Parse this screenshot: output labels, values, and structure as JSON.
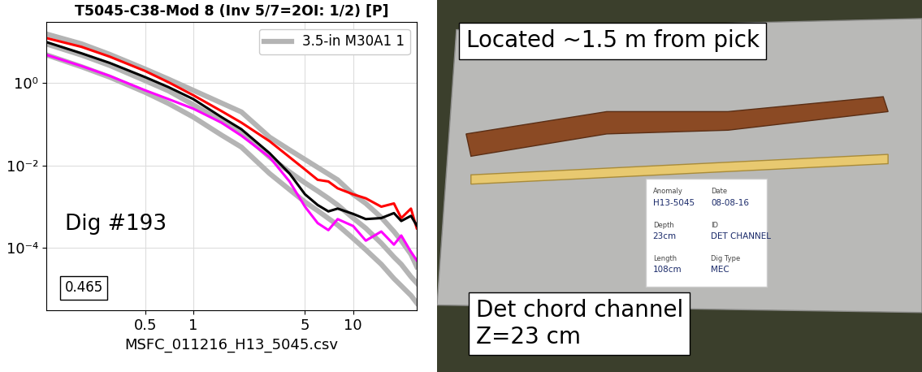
{
  "chart_data": {
    "type": "line",
    "title": "T5045-C38-Mod 8 (Inv 5/7=2OI: 1/2) [P]",
    "x_label": "MSFC_011216_H13_5045.csv",
    "annotations": [
      "Dig #193"
    ],
    "boxed_annotation": "0.465",
    "log": true,
    "grid": true,
    "legend": "upper right",
    "xlim": [
      0.12,
      25
    ],
    "ylim": [
      3e-06,
      30
    ],
    "xticks": [
      0.5,
      1,
      5,
      10
    ],
    "yticks": [
      {
        "value": 0.0001,
        "label": "10⁻⁴"
      },
      {
        "value": 0.01,
        "label": "10⁻²"
      },
      {
        "value": 1,
        "label": "10⁰"
      }
    ],
    "x": [
      0.12,
      0.2,
      0.3,
      0.5,
      0.7,
      1,
      1.5,
      2,
      3,
      4,
      5,
      6,
      7,
      8,
      10,
      12,
      15,
      18,
      20,
      23,
      25
    ],
    "series": [
      {
        "name": "3.5-in M30A1 1",
        "color": "#b4b4b4",
        "line_style": "solid",
        "values": [
          15.7,
          9.0,
          5.0,
          2.2,
          1.25,
          0.67,
          0.33,
          0.2,
          0.049,
          0.024,
          0.014,
          0.009,
          0.0062,
          0.0045,
          0.002,
          0.0012,
          0.00055,
          0.00025,
          0.00015,
          7e-05,
          3.5e-05
        ]
      },
      {
        "color": "#b4b4b4",
        "line_style": "solid",
        "values": [
          9.0,
          4.8,
          2.7,
          1.15,
          0.65,
          0.3,
          0.12,
          0.065,
          0.016,
          0.007,
          0.0038,
          0.0024,
          0.0016,
          0.0011,
          0.00053,
          0.0003,
          0.00013,
          6e-05,
          4e-05,
          2e-05,
          1.4e-05
        ]
      },
      {
        "color": "#b4b4b4",
        "line_style": "solid",
        "values": [
          4.9,
          2.5,
          1.4,
          0.6,
          0.32,
          0.15,
          0.055,
          0.028,
          0.0064,
          0.0026,
          0.0013,
          0.0008,
          0.00052,
          0.00036,
          0.00017,
          9e-05,
          4e-05,
          1.8e-05,
          1.2e-05,
          7e-06,
          4.6e-06
        ]
      },
      {
        "color": "#ff0000",
        "line_style": "solid",
        "values": [
          12.5,
          7.6,
          4.4,
          1.97,
          1.05,
          0.51,
          0.21,
          0.11,
          0.039,
          0.016,
          0.008,
          0.0045,
          0.0041,
          0.0028,
          0.002,
          0.0016,
          0.001,
          0.0012,
          0.00053,
          0.0009,
          0.0003
        ]
      },
      {
        "color": "#000000",
        "line_style": "solid",
        "values": [
          10.0,
          5.3,
          3.1,
          1.4,
          0.8,
          0.41,
          0.15,
          0.076,
          0.02,
          0.0064,
          0.002,
          0.0011,
          0.00077,
          0.0009,
          0.00067,
          0.0005,
          0.00053,
          0.0007,
          0.00045,
          0.0006,
          0.00035
        ]
      },
      {
        "color": "#ff00ff",
        "line_style": "solid",
        "values": [
          4.9,
          2.6,
          1.5,
          0.67,
          0.41,
          0.24,
          0.11,
          0.053,
          0.016,
          0.0041,
          0.001,
          0.0004,
          0.00027,
          0.0005,
          0.00034,
          0.00015,
          0.00025,
          0.00012,
          0.0002,
          8e-05,
          5e-05
        ]
      }
    ]
  },
  "photo": {
    "captions": [
      "Located ~1.5 m from pick",
      "Det chord channel\nZ=23 cm"
    ],
    "note_card": [
      {
        "label": "Anomaly",
        "value": "H13-5045"
      },
      {
        "label": "Date",
        "value": "08-08-16"
      },
      {
        "label": "Depth",
        "value": "23cm"
      },
      {
        "label": "ID",
        "value": "DET CHANNEL"
      },
      {
        "label": "Length",
        "value": "108cm"
      },
      {
        "label": "Dig Type",
        "value": "MEC"
      }
    ]
  }
}
